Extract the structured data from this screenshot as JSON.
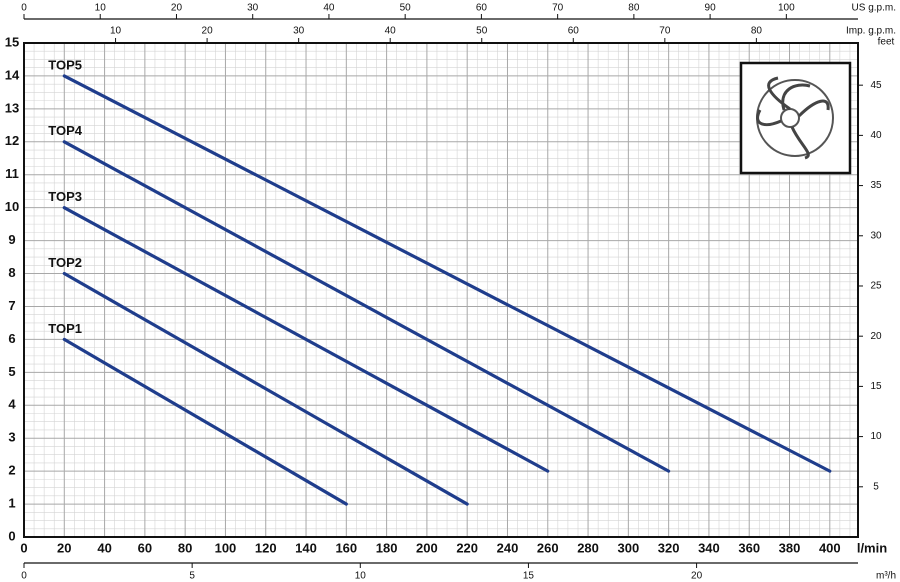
{
  "chart_data": {
    "type": "line",
    "xlabel": "l/min",
    "xlim": [
      0,
      414
    ],
    "xticks": [
      0,
      20,
      40,
      60,
      80,
      100,
      120,
      140,
      160,
      180,
      200,
      220,
      240,
      260,
      280,
      300,
      320,
      340,
      360,
      380,
      400
    ],
    "ylim": [
      0,
      15
    ],
    "yticks": [
      0,
      1,
      2,
      3,
      4,
      5,
      6,
      7,
      8,
      9,
      10,
      11,
      12,
      13,
      14,
      15
    ],
    "grid": true,
    "top_axes": [
      {
        "label": "US g.p.m.",
        "lim": [
          0,
          109.4
        ],
        "ticks": [
          0,
          10,
          20,
          30,
          40,
          50,
          60,
          70,
          80,
          90,
          100
        ]
      },
      {
        "label": "Imp. g.p.m.",
        "lim": [
          0,
          91.1
        ],
        "ticks": [
          10,
          20,
          30,
          40,
          50,
          60,
          70,
          80
        ]
      }
    ],
    "bottom_axis2": {
      "label": "m³/h",
      "lim": [
        0,
        24.8
      ],
      "ticks": [
        0,
        5,
        10,
        15,
        20
      ]
    },
    "right_axis": {
      "label": "feet",
      "lim": [
        0,
        49.2
      ],
      "ticks": [
        5,
        10,
        15,
        20,
        25,
        30,
        35,
        40,
        45
      ]
    },
    "series": [
      {
        "name": "TOP1",
        "color": "#1f3d8c",
        "x": [
          20,
          160
        ],
        "values": [
          6,
          1
        ]
      },
      {
        "name": "TOP2",
        "color": "#1f3d8c",
        "x": [
          20,
          220
        ],
        "values": [
          8,
          1
        ]
      },
      {
        "name": "TOP3",
        "color": "#1f3d8c",
        "x": [
          20,
          260
        ],
        "values": [
          10,
          2
        ]
      },
      {
        "name": "TOP4",
        "color": "#1f3d8c",
        "x": [
          20,
          320
        ],
        "values": [
          12,
          2
        ]
      },
      {
        "name": "TOP5",
        "color": "#1f3d8c",
        "x": [
          20,
          400
        ],
        "values": [
          14,
          2
        ]
      }
    ]
  }
}
